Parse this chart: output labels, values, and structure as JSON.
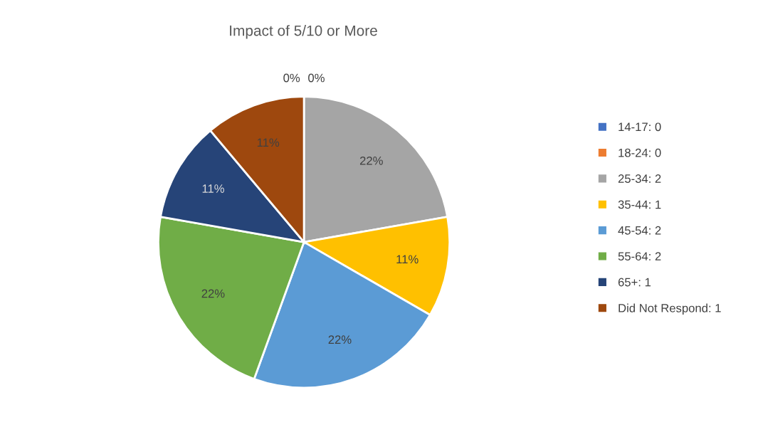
{
  "chart_data": {
    "type": "pie",
    "title": "Impact of 5/10 or More",
    "categories": [
      "14-17: 0",
      "18-24: 0",
      "25-34: 2",
      "35-44: 1",
      "45-54: 2",
      "55-64: 2",
      "65+: 1",
      "Did Not Respond: 1"
    ],
    "values": [
      0,
      0,
      22.2,
      11.1,
      22.2,
      22.2,
      11.1,
      11.1
    ],
    "colors": [
      "#4472c4",
      "#ed7d31",
      "#a5a5a5",
      "#ffc000",
      "#5b9bd5",
      "#70ad47",
      "#264478",
      "#9e480e"
    ],
    "value_labels": [
      "0%",
      "0%",
      "22%",
      "11%",
      "22%",
      "22%",
      "11%",
      "11%"
    ],
    "legend": "right"
  }
}
